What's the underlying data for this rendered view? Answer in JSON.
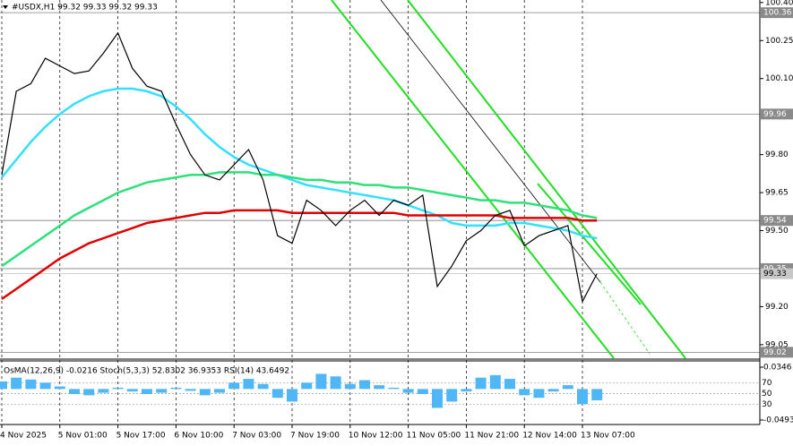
{
  "chart_data": [
    {
      "type": "line",
      "title": "#USDX,H1  99.32 99.33 99.32 99.33",
      "categories": [
        "4 Nov 2025",
        null,
        null,
        null,
        "5 Nov 01:00",
        null,
        null,
        null,
        "5 Nov 17:00",
        null,
        null,
        null,
        "6 Nov 10:00",
        null,
        null,
        null,
        "7 Nov 03:00",
        null,
        null,
        null,
        "7 Nov 19:00",
        null,
        null,
        null,
        "10 Nov 12:00",
        null,
        null,
        null,
        "11 Nov 05:00",
        null,
        null,
        null,
        "11 Nov 21:00",
        null,
        null,
        null,
        "12 Nov 14:00",
        null,
        null,
        null,
        "13 Nov 07:00",
        null
      ],
      "series": [
        {
          "color": "#000000",
          "values": [
            99.72,
            100.05,
            100.08,
            100.18,
            100.15,
            100.12,
            100.13,
            100.2,
            100.28,
            100.14,
            100.07,
            100.05,
            99.92,
            99.8,
            99.72,
            99.7,
            99.76,
            99.82,
            99.7,
            99.48,
            99.45,
            99.62,
            99.58,
            99.52,
            99.58,
            99.62,
            99.56,
            99.62,
            99.6,
            99.64,
            99.28,
            99.36,
            99.46,
            99.5,
            99.56,
            99.58,
            99.44,
            99.48,
            99.5,
            99.52,
            99.22,
            99.33
          ]
        },
        {
          "color": "#33e0ff",
          "values": [
            99.71,
            99.78,
            99.85,
            99.91,
            99.96,
            100.0,
            100.03,
            100.05,
            100.06,
            100.06,
            100.05,
            100.03,
            99.99,
            99.94,
            99.88,
            99.83,
            99.79,
            99.76,
            99.74,
            99.72,
            99.7,
            99.68,
            99.67,
            99.66,
            99.65,
            99.64,
            99.63,
            99.62,
            99.6,
            99.58,
            99.56,
            99.53,
            99.52,
            99.52,
            99.52,
            99.53,
            99.53,
            99.52,
            99.51,
            99.5,
            99.48,
            99.47
          ]
        },
        {
          "color": "#2ee07a",
          "values": [
            99.36,
            99.4,
            99.44,
            99.48,
            99.52,
            99.56,
            99.59,
            99.62,
            99.65,
            99.67,
            99.69,
            99.7,
            99.71,
            99.72,
            99.72,
            99.73,
            99.73,
            99.73,
            99.72,
            99.72,
            99.71,
            99.7,
            99.7,
            99.69,
            99.69,
            99.68,
            99.68,
            99.67,
            99.67,
            99.66,
            99.65,
            99.64,
            99.63,
            99.62,
            99.62,
            99.61,
            99.61,
            99.6,
            99.59,
            99.58,
            99.56,
            99.55
          ]
        },
        {
          "color": "#e00000",
          "values": [
            99.23,
            99.27,
            99.31,
            99.35,
            99.39,
            99.42,
            99.45,
            99.47,
            99.49,
            99.51,
            99.53,
            99.54,
            99.55,
            99.56,
            99.57,
            99.57,
            99.58,
            99.58,
            99.58,
            99.58,
            99.57,
            99.57,
            99.57,
            99.57,
            99.57,
            99.57,
            99.57,
            99.57,
            99.56,
            99.56,
            99.56,
            99.56,
            99.56,
            99.56,
            99.56,
            99.55,
            99.55,
            99.55,
            99.55,
            99.55,
            99.54,
            99.54
          ]
        }
      ],
      "ylim": [
        99.0,
        100.41
      ],
      "yticks": [
        {
          "value": 100.4,
          "label": "100.40"
        },
        100.25,
        {
          "value": 100.1,
          "label": "100.10"
        },
        {
          "value": 99.8,
          "label": "99.80"
        },
        99.65,
        {
          "value": 99.5,
          "label": "99.50"
        },
        {
          "value": 99.2,
          "label": "99.20"
        },
        99.05
      ],
      "levels": [
        100.36,
        99.96,
        99.54,
        99.35,
        99.02
      ],
      "current_price": 99.33,
      "grid": true
    },
    {
      "type": "bar",
      "title": "OsMA(12,26,9) -0.0216  Stoch(5,3,3) 52.8302 36.9353  RSI(14) 43.6492",
      "color": "#4fb7f5",
      "values": [
        0.012,
        0.018,
        0.015,
        0.01,
        0.004,
        -0.008,
        -0.01,
        -0.006,
        0.002,
        -0.004,
        -0.008,
        -0.006,
        0.002,
        -0.003,
        -0.01,
        -0.006,
        0.01,
        0.016,
        0.008,
        -0.014,
        -0.02,
        0.01,
        0.024,
        0.02,
        0.008,
        0.014,
        0.006,
        0.002,
        -0.006,
        -0.008,
        -0.03,
        -0.02,
        -0.004,
        0.018,
        0.022,
        0.016,
        -0.01,
        -0.014,
        -0.004,
        0.006,
        -0.024,
        -0.018
      ],
      "ylim": [
        -0.0493,
        0.0346
      ],
      "yticks": [
        -0.0493,
        0.0346
      ],
      "y2lim": [
        0,
        100
      ],
      "y2ticks": [
        30,
        50,
        70
      ]
    }
  ]
}
